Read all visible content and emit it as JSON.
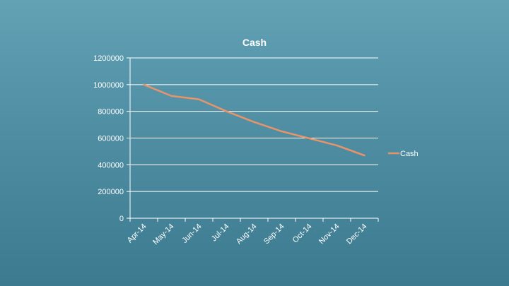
{
  "chart_data": {
    "type": "line",
    "title": "Cash",
    "xlabel": "",
    "ylabel": "",
    "categories": [
      "Apr-14",
      "May-14",
      "Jun-14",
      "Jul-14",
      "Aug-14",
      "Sep-14",
      "Oct-14",
      "Nov-14",
      "Dec-14"
    ],
    "series": [
      {
        "name": "Cash",
        "values": [
          1000000,
          915000,
          890000,
          800000,
          720000,
          650000,
          598000,
          545000,
          470000
        ]
      }
    ],
    "ylim": [
      0,
      1200000
    ],
    "yticks": [
      "0",
      "200000",
      "400000",
      "600000",
      "800000",
      "1000000",
      "1200000"
    ],
    "grid": true,
    "legend_position": "right",
    "colors": {
      "line": "#e8946a",
      "axis": "#ffffff",
      "text": "#ffffff"
    }
  }
}
